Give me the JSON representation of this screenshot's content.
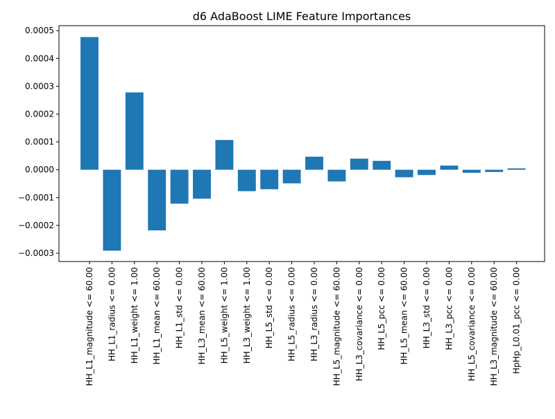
{
  "chart_data": {
    "type": "bar",
    "title": "d6 AdaBoost LIME Feature Importances",
    "xlabel": "",
    "ylabel": "",
    "categories": [
      "HH_L1_magnitude <= 60.00",
      "HH_L1_radius <= 0.00",
      "HH_L1_weight <= 1.00",
      "HH_L1_mean <= 60.00",
      "HH_L1_std <= 0.00",
      "HH_L3_mean <= 60.00",
      "HH_L5_weight <= 1.00",
      "HH_L3_weight <= 1.00",
      "HH_L5_std <= 0.00",
      "HH_L5_radius <= 0.00",
      "HH_L3_radius <= 0.00",
      "HH_L5_magnitude <= 60.00",
      "HH_L3_covariance <= 0.00",
      "HH_L5_pcc <= 0.00",
      "HH_L5_mean <= 60.00",
      "HH_L3_std <= 0.00",
      "HH_L3_pcc <= 0.00",
      "HH_L5_covariance <= 0.00",
      "HH_L3_magnitude <= 60.00",
      "HpHp_L0.01_pcc <= 0.00"
    ],
    "values": [
      0.000477,
      -0.000291,
      0.000278,
      -0.000218,
      -0.000122,
      -0.000104,
      0.000107,
      -7.7e-05,
      -7e-05,
      -4.9e-05,
      4.7e-05,
      -4.2e-05,
      4e-05,
      3.2e-05,
      -2.7e-05,
      -1.9e-05,
      1.5e-05,
      -1.1e-05,
      -8e-06,
      5e-06
    ],
    "ylim": [
      -0.00033,
      0.000518
    ],
    "yticks": [
      -0.0003,
      -0.0002,
      -0.0001,
      0.0,
      0.0001,
      0.0002,
      0.0003,
      0.0004,
      0.0005
    ],
    "ytick_labels": [
      "−0.0003",
      "−0.0002",
      "−0.0001",
      "0.0000",
      "0.0001",
      "0.0002",
      "0.0003",
      "0.0004",
      "0.0005"
    ],
    "bar_color": "#1f77b4",
    "grid": false,
    "legend": false
  }
}
